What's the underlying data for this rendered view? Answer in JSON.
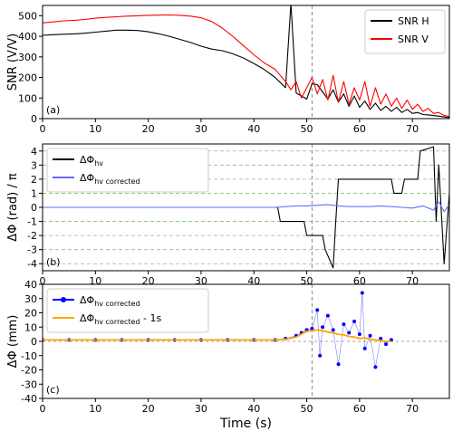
{
  "chart_data": [
    {
      "type": "line",
      "panel_label": "(a)",
      "ylabel": "SNR (V/V)",
      "xlabel": "",
      "xlim": [
        0,
        77
      ],
      "ylim": [
        0,
        550
      ],
      "xticks": [
        0,
        10,
        20,
        30,
        40,
        50,
        60,
        70
      ],
      "yticks": [
        0,
        100,
        200,
        300,
        400,
        500
      ],
      "grid": false,
      "legend_position": "top-right",
      "vline_x": 51,
      "series": [
        {
          "name": "SNR H",
          "color": "#000000",
          "x": [
            0,
            2,
            4,
            6,
            8,
            10,
            12,
            14,
            16,
            18,
            20,
            22,
            24,
            26,
            28,
            30,
            32,
            34,
            36,
            38,
            40,
            42,
            44,
            45,
            46,
            47,
            48,
            49,
            50,
            51,
            52,
            53,
            54,
            55,
            56,
            57,
            58,
            59,
            60,
            61,
            62,
            63,
            64,
            65,
            66,
            67,
            68,
            69,
            70,
            71,
            72,
            73,
            74,
            75,
            76,
            77
          ],
          "y": [
            405,
            408,
            410,
            412,
            415,
            420,
            425,
            430,
            430,
            428,
            422,
            412,
            400,
            385,
            370,
            352,
            338,
            330,
            315,
            295,
            268,
            238,
            200,
            175,
            150,
            560,
            125,
            110,
            95,
            170,
            165,
            130,
            95,
            140,
            80,
            120,
            60,
            110,
            55,
            85,
            45,
            75,
            40,
            60,
            35,
            55,
            30,
            45,
            25,
            30,
            20,
            18,
            15,
            12,
            8,
            5
          ]
        },
        {
          "name": "SNR V",
          "color": "#ff0000",
          "x": [
            0,
            2,
            4,
            6,
            8,
            10,
            12,
            14,
            16,
            18,
            20,
            22,
            24,
            26,
            28,
            30,
            32,
            34,
            36,
            38,
            40,
            42,
            44,
            45,
            46,
            47,
            48,
            49,
            50,
            51,
            52,
            53,
            54,
            55,
            56,
            57,
            58,
            59,
            60,
            61,
            62,
            63,
            64,
            65,
            66,
            67,
            68,
            69,
            70,
            71,
            72,
            73,
            74,
            75,
            76,
            77
          ],
          "y": [
            465,
            470,
            475,
            478,
            482,
            488,
            492,
            495,
            498,
            500,
            502,
            503,
            504,
            502,
            498,
            490,
            472,
            440,
            400,
            355,
            310,
            270,
            240,
            210,
            180,
            140,
            180,
            100,
            150,
            200,
            120,
            190,
            90,
            210,
            80,
            180,
            70,
            150,
            90,
            180,
            60,
            150,
            70,
            120,
            60,
            100,
            50,
            90,
            45,
            70,
            35,
            50,
            25,
            30,
            15,
            10
          ]
        }
      ]
    },
    {
      "type": "line",
      "panel_label": "(b)",
      "ylabel": "ΔΦ (rad) / π",
      "xlabel": "",
      "xlim": [
        0,
        77
      ],
      "ylim": [
        -4.5,
        4.5
      ],
      "xticks": [
        0,
        10,
        20,
        30,
        40,
        50,
        60,
        70
      ],
      "yticks": [
        -4,
        -3,
        -2,
        -1,
        0,
        1,
        2,
        3,
        4
      ],
      "grid": true,
      "legend_position": "top-left",
      "vline_x": 51,
      "series": [
        {
          "name": "ΔΦ",
          "name_sub": "hv",
          "color": "#000000",
          "x": [
            0,
            10,
            20,
            30,
            40,
            44.5,
            45,
            49.5,
            50,
            53,
            53.5,
            55,
            55.5,
            56,
            56.5,
            66,
            66.5,
            68,
            68.5,
            71,
            71.5,
            74,
            74.5,
            75,
            76,
            77
          ],
          "y": [
            0,
            0,
            0,
            0,
            0,
            0,
            -1,
            -1,
            -2,
            -2,
            -3,
            -4.3,
            -1,
            2,
            2,
            2,
            1,
            1,
            2,
            2,
            4,
            4.3,
            -1,
            3,
            -4,
            1
          ]
        },
        {
          "name": "ΔΦ",
          "name_sub": "hv corrected",
          "color": "#6a6aff",
          "x": [
            0,
            10,
            20,
            30,
            40,
            44,
            46,
            48,
            50,
            52,
            54,
            56,
            58,
            60,
            62,
            64,
            66,
            68,
            70,
            72,
            74,
            75,
            76,
            77
          ],
          "y": [
            0,
            0,
            0,
            0,
            0,
            0,
            0.05,
            0.1,
            0.1,
            0.15,
            0.2,
            0.1,
            0.05,
            0.05,
            0.05,
            0.1,
            0.05,
            0,
            -0.05,
            0.1,
            -0.2,
            0.4,
            -0.3,
            0.2
          ]
        }
      ]
    },
    {
      "type": "scatter",
      "panel_label": "(c)",
      "ylabel": "ΔΦ (mm)",
      "xlabel": "Time (s)",
      "xlim": [
        0,
        77
      ],
      "ylim": [
        -40,
        40
      ],
      "xticks": [
        0,
        10,
        20,
        30,
        40,
        50,
        60,
        70
      ],
      "yticks": [
        -40,
        -30,
        -20,
        -10,
        0,
        10,
        20,
        30,
        40
      ],
      "grid": false,
      "legend_position": "top-left",
      "vline_x": 51,
      "hline_y": 0,
      "series": [
        {
          "name": "ΔΦ",
          "name_sub": "hv corrected",
          "color": "#0000ff",
          "x": [
            0,
            5,
            10,
            15,
            20,
            25,
            30,
            35,
            40,
            44,
            46,
            48,
            49,
            50,
            51,
            52,
            52.5,
            53,
            54,
            55,
            56,
            57,
            58,
            59,
            60,
            60.5,
            61,
            62,
            63,
            64,
            65,
            66
          ],
          "y": [
            1,
            1,
            1,
            1,
            1,
            1,
            1,
            1,
            1,
            1,
            2,
            4,
            6,
            8,
            9,
            22,
            -10,
            10,
            18,
            8,
            -16,
            12,
            6,
            14,
            5,
            34,
            -5,
            4,
            -18,
            2,
            -2,
            1
          ]
        },
        {
          "name": "ΔΦ",
          "name_sub": "hv corrected",
          "name_suffix": " - 1s",
          "color": "#ffa500",
          "x": [
            0,
            5,
            10,
            15,
            20,
            25,
            30,
            35,
            40,
            44,
            46,
            48,
            49,
            50,
            51,
            52,
            53,
            54,
            55,
            56,
            57,
            58,
            59,
            60,
            61,
            62,
            63,
            64,
            65,
            66
          ],
          "y": [
            1,
            1,
            1,
            1,
            1,
            1,
            1,
            1,
            1,
            1,
            1.5,
            3,
            5,
            7,
            7.5,
            8,
            7.5,
            6.5,
            6,
            5,
            4.5,
            3.5,
            3,
            2,
            2.5,
            1.5,
            1,
            0.5,
            0,
            0
          ]
        }
      ]
    }
  ]
}
